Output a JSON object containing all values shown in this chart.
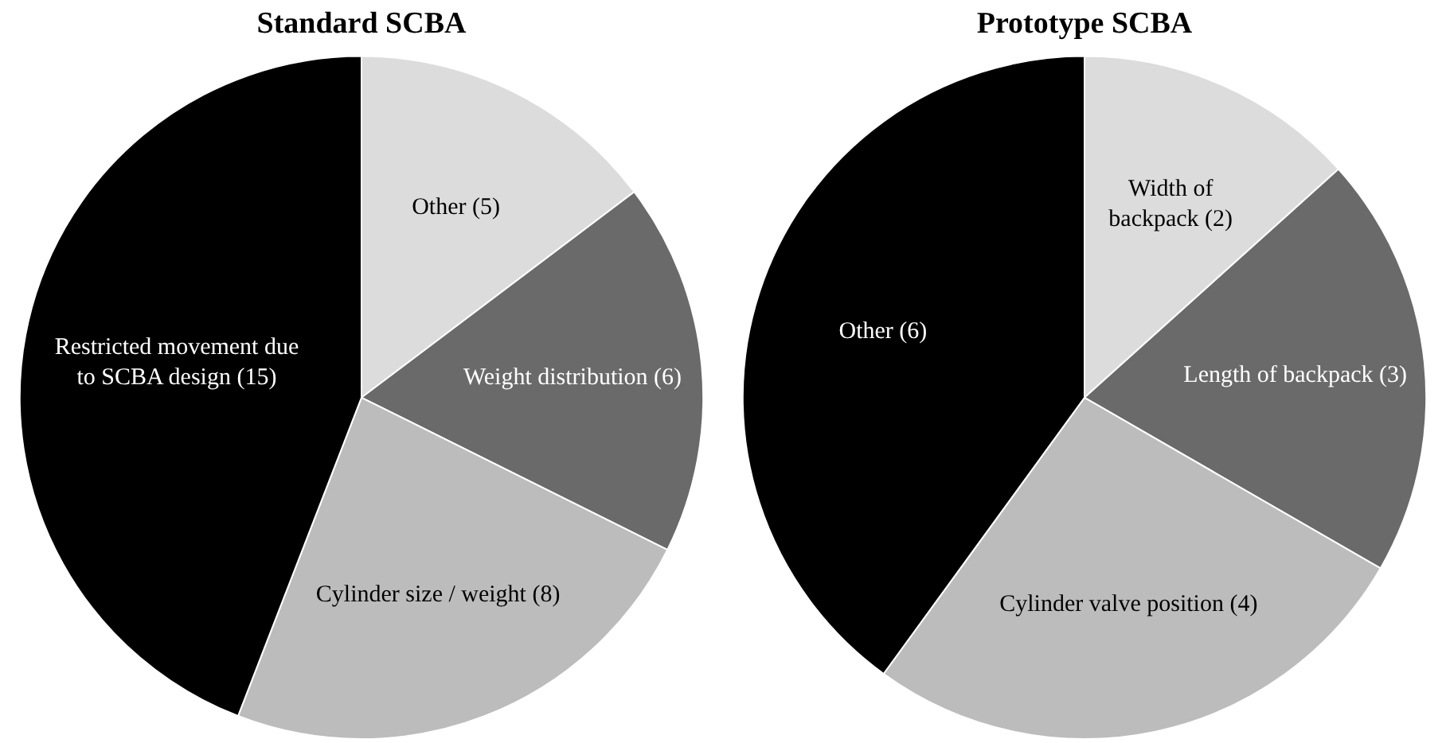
{
  "chart_data": [
    {
      "type": "pie",
      "title": "Standard SCBA",
      "categories": [
        "Other (5)",
        "Weight distribution (6)",
        "Cylinder size / weight (8)",
        "Restricted movement due to SCBA design (15)"
      ],
      "values": [
        5,
        6,
        8,
        15
      ],
      "colors": [
        "#dcdcdc",
        "#6a6a6a",
        "#bcbcbc",
        "#000000"
      ],
      "legend": false
    },
    {
      "type": "pie",
      "title": "Prototype SCBA",
      "categories": [
        "Width of backpack (2)",
        "Length of backpack (3)",
        "Cylinder valve position (4)",
        "Other (6)"
      ],
      "values": [
        2,
        3,
        4,
        6
      ],
      "colors": [
        "#dcdcdc",
        "#6a6a6a",
        "#bcbcbc",
        "#000000"
      ],
      "legend": false
    }
  ]
}
